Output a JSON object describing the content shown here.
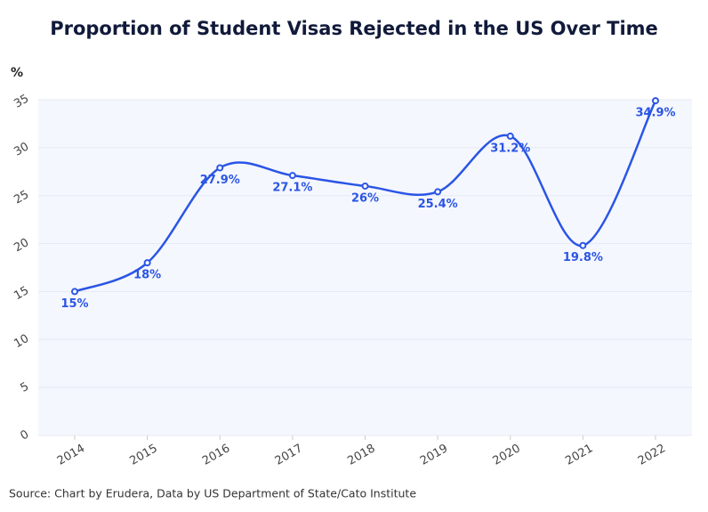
{
  "chart_data": {
    "type": "line",
    "title": "Proportion of Student Visas Rejected in the US Over Time",
    "y_label": "%",
    "source": "Source: Chart by Erudera, Data by US Department of State/Cato Institute",
    "categories": [
      "2014",
      "2015",
      "2016",
      "2017",
      "2018",
      "2019",
      "2020",
      "2021",
      "2022"
    ],
    "values": [
      15,
      18,
      27.9,
      27.1,
      26,
      25.4,
      31.2,
      19.8,
      34.9
    ],
    "value_labels": [
      "15%",
      "18%",
      "27.9%",
      "27.1%",
      "26%",
      "25.4%",
      "31.2%",
      "19.8%",
      "34.9%"
    ],
    "color": "#2a55e5",
    "ylim": [
      0,
      35
    ],
    "yticks": [
      0,
      5,
      10,
      15,
      20,
      25,
      30,
      35
    ],
    "grid": true
  }
}
